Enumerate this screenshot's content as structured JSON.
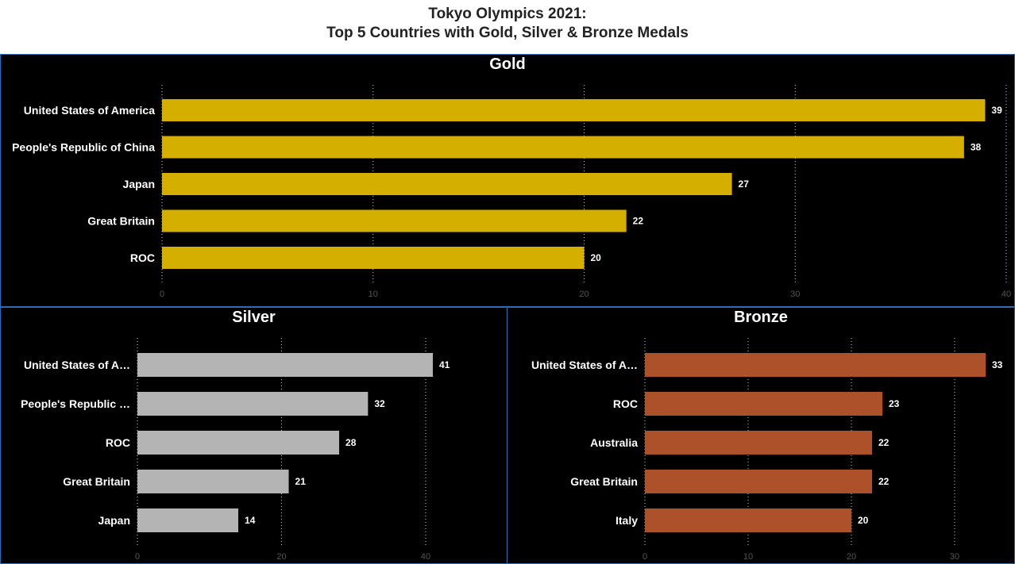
{
  "page": {
    "title_line1": "Tokyo Olympics 2021:",
    "title_line2": "Top 5 Countries with Gold, Silver & Bronze Medals"
  },
  "chart_data": [
    {
      "type": "bar",
      "orientation": "horizontal",
      "title": "Gold",
      "categories": [
        "United States of America",
        "People's Republic of China",
        "Japan",
        "Great Britain",
        "ROC"
      ],
      "category_labels": [
        "United States of America",
        "People's Republic of China",
        "Japan",
        "Great Britain",
        "ROC"
      ],
      "values": [
        39,
        38,
        27,
        22,
        20
      ],
      "color": "#d4af00",
      "xlim": [
        0,
        40
      ],
      "xticks": [
        0,
        10,
        20,
        30,
        40
      ],
      "grid": true
    },
    {
      "type": "bar",
      "orientation": "horizontal",
      "title": "Silver",
      "categories": [
        "United States of America",
        "People's Republic of China",
        "ROC",
        "Great Britain",
        "Japan"
      ],
      "category_labels": [
        "United States of A…",
        "People's Republic …",
        "ROC",
        "Great Britain",
        "Japan"
      ],
      "values": [
        41,
        32,
        28,
        21,
        14
      ],
      "color": "#b4b4b4",
      "xlim": [
        0,
        41
      ],
      "xticks": [
        0,
        20,
        40
      ],
      "grid": true
    },
    {
      "type": "bar",
      "orientation": "horizontal",
      "title": "Bronze",
      "categories": [
        "United States of America",
        "ROC",
        "Australia",
        "Great Britain",
        "Italy"
      ],
      "category_labels": [
        "United States of A…",
        "ROC",
        "Australia",
        "Great Britain",
        "Italy"
      ],
      "values": [
        33,
        23,
        22,
        22,
        20
      ],
      "color": "#ad512a",
      "xlim": [
        0,
        33
      ],
      "xticks": [
        0,
        10,
        20,
        30
      ],
      "grid": true
    }
  ]
}
